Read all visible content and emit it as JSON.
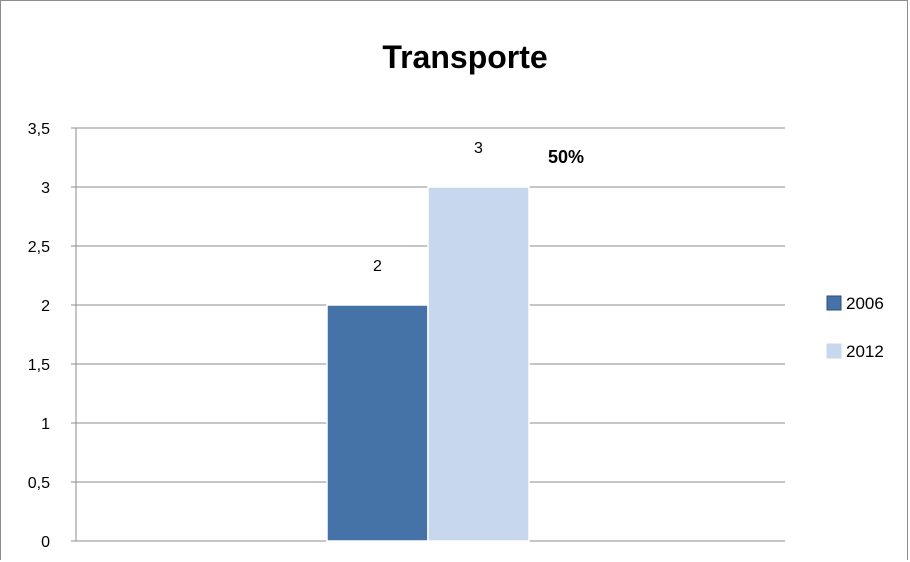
{
  "chart_data": {
    "type": "bar",
    "title": "Transporte",
    "xlabel": "",
    "ylabel": "",
    "categories": [
      ""
    ],
    "series": [
      {
        "name": "2006",
        "values": [
          2
        ],
        "color": "#4572a7"
      },
      {
        "name": "2012",
        "values": [
          3
        ],
        "color": "#c6d7ee"
      }
    ],
    "ylim": [
      0,
      3.5
    ],
    "yticks": [
      "0",
      "0,5",
      "1",
      "1,5",
      "2",
      "2,5",
      "3",
      "3,5"
    ],
    "data_labels": [
      "2",
      "3"
    ],
    "annotation": "50%",
    "grid": true,
    "legend_position": "right"
  }
}
